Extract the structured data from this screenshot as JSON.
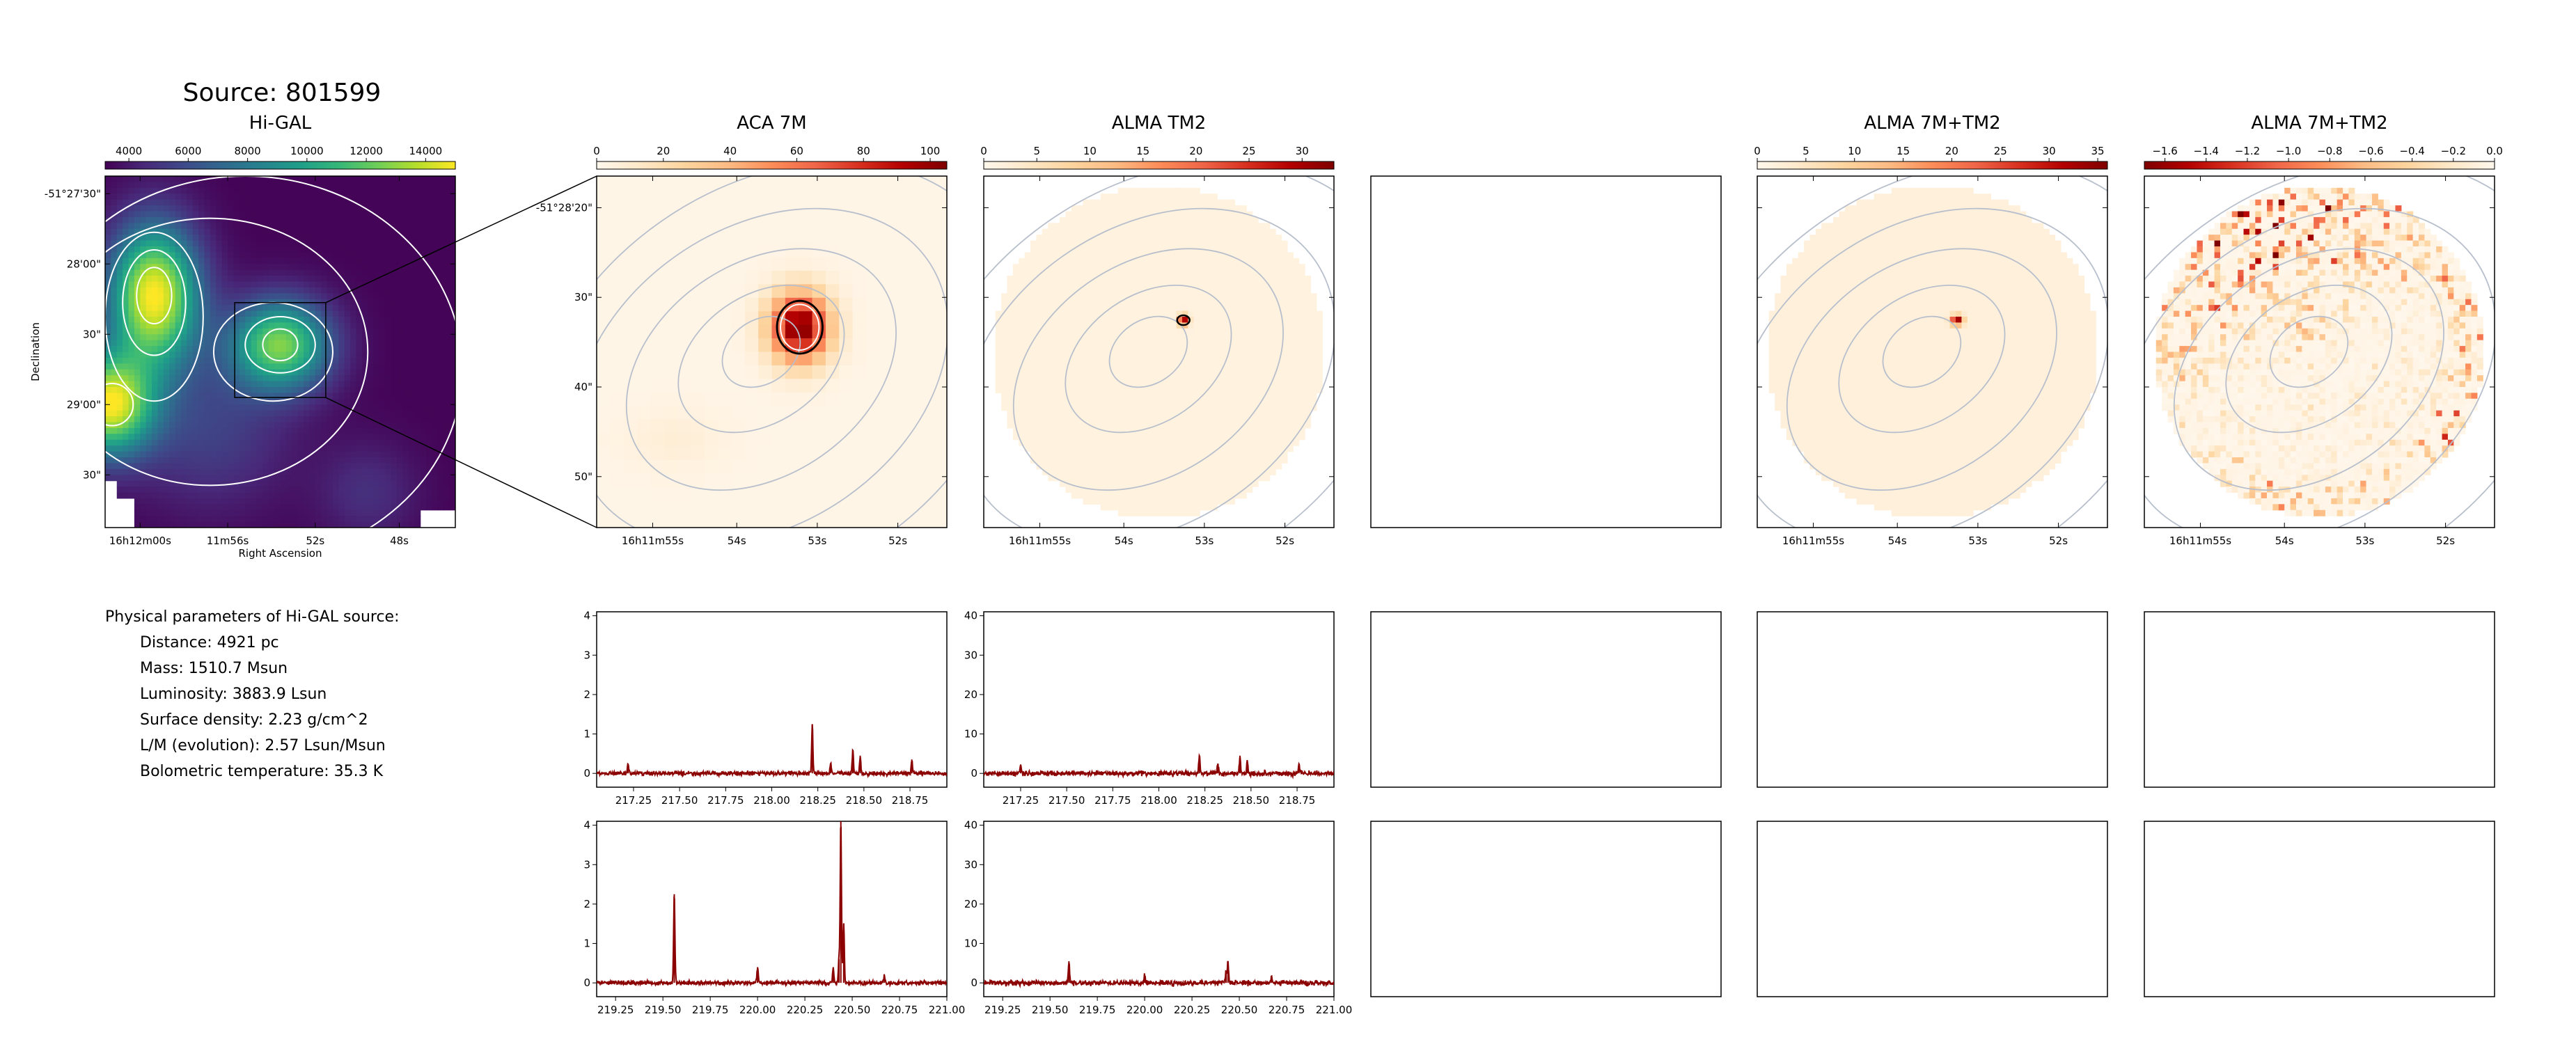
{
  "figure": {
    "suptitle": "Source: 801599"
  },
  "colors": {
    "viridis": [
      "#440154",
      "#482878",
      "#3e4989",
      "#31688e",
      "#26828e",
      "#1f9e89",
      "#35b779",
      "#6ece58",
      "#b5de2b",
      "#fde725"
    ],
    "orrd": [
      "#fff7ec",
      "#fee8c8",
      "#fdd49e",
      "#fdbb84",
      "#fc8d59",
      "#ef6548",
      "#d7301f",
      "#b30000",
      "#7f0000"
    ],
    "orrd_r": [
      "#7f0000",
      "#b30000",
      "#d7301f",
      "#ef6548",
      "#fc8d59",
      "#fdbb84",
      "#fdd49e",
      "#fee8c8",
      "#fff7ec"
    ],
    "contour_white": "#ffffff",
    "contour_gray": "#b8bfcc",
    "spectrum": "#8b0000"
  },
  "physical": {
    "heading": "Physical parameters of Hi-GAL source:",
    "lines": [
      "Distance: 4921 pc",
      "Mass: 1510.7 Msun",
      "Luminosity: 3883.9 Lsun",
      "Surface density: 2.23 g/cm^2",
      "L/M (evolution): 2.57 Lsun/Msun",
      "Bolometric temperature: 35.3 K"
    ]
  },
  "chart_data": [
    {
      "type": "heatmap",
      "title": "Hi-GAL",
      "colormap": "viridis",
      "colorbar": {
        "ticks": [
          "4000",
          "6000",
          "8000",
          "10000",
          "12000",
          "14000"
        ],
        "range": [
          3200,
          15000
        ]
      },
      "xlabel": "Right Ascension",
      "ylabel": "Declination",
      "xticks": [
        "16h12m00s",
        "11m56s",
        "52s",
        "48s"
      ],
      "yticks": [
        "-51°27'30\"",
        "28'00\"",
        "30\"",
        "29'00\"",
        "30\""
      ],
      "blobs": [
        {
          "x": 0.14,
          "y": 0.34,
          "value": 15000,
          "sx": 0.09,
          "sy": 0.14
        },
        {
          "x": 0.5,
          "y": 0.48,
          "value": 12500,
          "sx": 0.1,
          "sy": 0.09
        },
        {
          "x": 0.01,
          "y": 0.65,
          "value": 14500,
          "sx": 0.09,
          "sy": 0.1
        }
      ],
      "base": 3300,
      "zoom_box": {
        "x0": 0.37,
        "y0": 0.36,
        "x1": 0.63,
        "y1": 0.63
      }
    },
    {
      "type": "heatmap",
      "title": "ACA 7M",
      "colormap": "orrd",
      "colorbar": {
        "ticks": [
          "0",
          "20",
          "40",
          "60",
          "80",
          "100"
        ],
        "range": [
          0,
          105
        ]
      },
      "xticks": [
        "16h11m55s",
        "54s",
        "53s",
        "52s"
      ],
      "yticks": [
        "-51°28'20\"",
        "30\"",
        "40\"",
        "50\""
      ],
      "pixelated": true,
      "blobs": [
        {
          "x": 0.58,
          "y": 0.43,
          "value": 105,
          "sx": 0.06,
          "sy": 0.07
        },
        {
          "x": 0.22,
          "y": 0.75,
          "value": 8,
          "sx": 0.1,
          "sy": 0.06
        }
      ],
      "base": 2
    },
    {
      "type": "heatmap",
      "title": "ALMA TM2",
      "colormap": "orrd",
      "colorbar": {
        "ticks": [
          "0",
          "5",
          "10",
          "15",
          "20",
          "25",
          "30"
        ],
        "range": [
          0,
          33
        ]
      },
      "xticks": [
        "16h11m55s",
        "54s",
        "53s",
        "52s"
      ],
      "circular": true,
      "blobs": [
        {
          "x": 0.57,
          "y": 0.41,
          "value": 33,
          "sx": 0.01,
          "sy": 0.01
        }
      ],
      "base": 1.5
    },
    {
      "type": "empty"
    },
    {
      "type": "heatmap",
      "title": "ALMA 7M+TM2",
      "colormap": "orrd",
      "colorbar": {
        "ticks": [
          "0",
          "5",
          "10",
          "15",
          "20",
          "25",
          "30",
          "35"
        ],
        "range": [
          0,
          36
        ]
      },
      "xticks": [
        "16h11m55s",
        "54s",
        "53s",
        "52s"
      ],
      "circular": true,
      "blobs": [
        {
          "x": 0.57,
          "y": 0.41,
          "value": 36,
          "sx": 0.012,
          "sy": 0.01
        }
      ],
      "base": 2
    },
    {
      "type": "heatmap",
      "title": "ALMA 7M+TM2",
      "colormap": "orrd_r",
      "colorbar": {
        "ticks": [
          "−1.6",
          "−1.4",
          "−1.2",
          "−1.0",
          "−0.8",
          "−0.6",
          "−0.4",
          "−0.2",
          "0.0"
        ],
        "range": [
          -1.7,
          0
        ]
      },
      "xticks": [
        "16h11m55s",
        "54s",
        "53s",
        "52s"
      ],
      "circular": true,
      "noise_ring": true
    },
    {
      "type": "line",
      "panel": "ACA 7M spectrum (upper band)",
      "xlim": [
        217.05,
        218.95
      ],
      "ylim": [
        -0.35,
        4.1
      ],
      "xticks": [
        "217.25",
        "217.50",
        "217.75",
        "218.00",
        "218.25",
        "218.50",
        "218.75"
      ],
      "yticks": [
        "0",
        "1",
        "2",
        "3",
        "4"
      ],
      "ytick_values": [
        0,
        1,
        2,
        3,
        4
      ],
      "xtick_values": [
        217.25,
        217.5,
        217.75,
        218.0,
        218.25,
        218.5,
        218.75
      ],
      "noise": 0.05,
      "lines": [
        {
          "x": 217.22,
          "y": 0.25
        },
        {
          "x": 218.22,
          "y": 1.25
        },
        {
          "x": 218.32,
          "y": 0.25
        },
        {
          "x": 218.44,
          "y": 0.6
        },
        {
          "x": 218.48,
          "y": 0.45
        },
        {
          "x": 218.76,
          "y": 0.35
        }
      ]
    },
    {
      "type": "line",
      "panel": "ALMA TM2 spectrum (upper band)",
      "xlim": [
        217.05,
        218.95
      ],
      "ylim": [
        -3.5,
        41
      ],
      "xticks": [
        "217.25",
        "217.50",
        "217.75",
        "218.00",
        "218.25",
        "218.50",
        "218.75"
      ],
      "yticks": [
        "0",
        "10",
        "20",
        "30",
        "40"
      ],
      "ytick_values": [
        0,
        10,
        20,
        30,
        40
      ],
      "xtick_values": [
        217.25,
        217.5,
        217.75,
        218.0,
        218.25,
        218.5,
        218.75
      ],
      "noise": 0.6,
      "lines": [
        {
          "x": 217.25,
          "y": 2.0
        },
        {
          "x": 218.22,
          "y": 4.5
        },
        {
          "x": 218.32,
          "y": 2.5
        },
        {
          "x": 218.44,
          "y": 4.5
        },
        {
          "x": 218.48,
          "y": 3.0
        },
        {
          "x": 218.76,
          "y": 2.5
        }
      ]
    },
    {
      "type": "line",
      "panel": "ACA 7M spectrum (lower band)",
      "xlim": [
        219.15,
        221.0
      ],
      "ylim": [
        -0.35,
        4.1
      ],
      "xticks": [
        "219.25",
        "219.50",
        "219.75",
        "220.00",
        "220.25",
        "220.50",
        "220.75",
        "221.00"
      ],
      "yticks": [
        "0",
        "1",
        "2",
        "3",
        "4"
      ],
      "ytick_values": [
        0,
        1,
        2,
        3,
        4
      ],
      "xtick_values": [
        219.25,
        219.5,
        219.75,
        220.0,
        220.25,
        220.5,
        220.75,
        221.0
      ],
      "noise": 0.05,
      "lines": [
        {
          "x": 219.56,
          "y": 2.25
        },
        {
          "x": 220.0,
          "y": 0.4
        },
        {
          "x": 220.4,
          "y": 0.4
        },
        {
          "x": 220.43,
          "y": 0.6
        },
        {
          "x": 220.44,
          "y": 4.1
        },
        {
          "x": 220.455,
          "y": 1.5
        },
        {
          "x": 220.67,
          "y": 0.2
        }
      ]
    },
    {
      "type": "line",
      "panel": "ALMA TM2 spectrum (lower band)",
      "xlim": [
        219.15,
        221.0
      ],
      "ylim": [
        -3.5,
        41
      ],
      "xticks": [
        "219.25",
        "219.50",
        "219.75",
        "220.00",
        "220.25",
        "220.50",
        "220.75",
        "221.00"
      ],
      "yticks": [
        "0",
        "10",
        "20",
        "30",
        "40"
      ],
      "ytick_values": [
        0,
        10,
        20,
        30,
        40
      ],
      "xtick_values": [
        219.25,
        219.5,
        219.75,
        220.0,
        220.25,
        220.5,
        220.75,
        221.0
      ],
      "noise": 0.6,
      "lines": [
        {
          "x": 219.6,
          "y": 5.5
        },
        {
          "x": 220.0,
          "y": 2.0
        },
        {
          "x": 220.43,
          "y": 3.0
        },
        {
          "x": 220.44,
          "y": 5.5
        },
        {
          "x": 220.67,
          "y": 1.5
        }
      ]
    },
    {
      "type": "empty"
    },
    {
      "type": "empty"
    },
    {
      "type": "empty"
    },
    {
      "type": "empty"
    },
    {
      "type": "empty"
    },
    {
      "type": "empty"
    }
  ]
}
